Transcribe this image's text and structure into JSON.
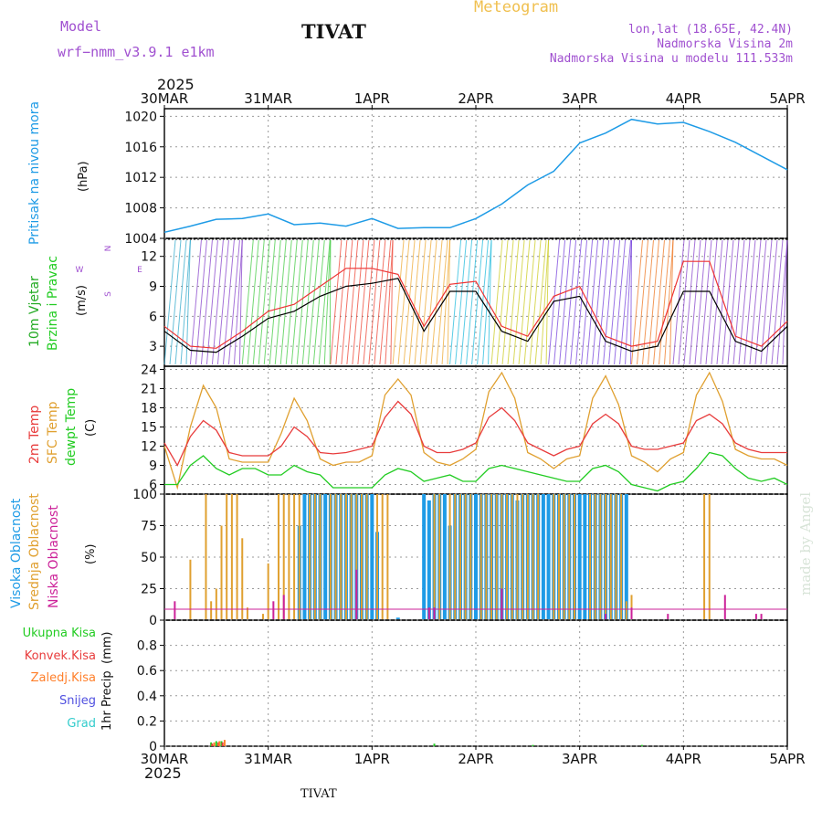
{
  "header": {
    "model_label": "Model",
    "model_name": "wrf−nmm_v3.9.1  e1km",
    "station": "TIVAT",
    "meteogram": "Meteogram",
    "lonlat": "lon,lat (18.65E, 42.4N)",
    "elevation": "Nadmorska Visina 2m",
    "model_elevation": "Nadmorska Visina u modelu 111.533m",
    "footer_station": "TIVAT",
    "credit": "made by Angel",
    "year_top": "2025",
    "year_bottom": "2025"
  },
  "colors": {
    "pressure": "#1e9be6",
    "wind_label_1": "#22aa22",
    "wind_label_2": "#22cc22",
    "temp2m": "#e83c3c",
    "sfc_temp": "#e0a030",
    "dewpoint": "#22cc22",
    "high_cloud": "#1e9be6",
    "mid_cloud": "#e0a030",
    "low_cloud": "#cc2299",
    "total_precip": "#22cc22",
    "conv_precip": "#e83c3c",
    "frozen_precip": "#ff7f2a",
    "snow": "#5050e0",
    "grad": "#33cccc",
    "title_purple": "#a050d0",
    "meteogram_orange": "#f0c050"
  },
  "chart_data": [
    {
      "type": "line",
      "panel": "pressure",
      "ylabel_left": "Pritisak na nivou mora",
      "ylabel_unit": "(hPa)",
      "ylim": [
        1004,
        1021
      ],
      "yticks": [
        "1004",
        "1008",
        "1012",
        "1016",
        "1020"
      ],
      "xticks": [
        "30MAR",
        "31MAR",
        "1APR",
        "2APR",
        "3APR",
        "4APR",
        "5APR"
      ],
      "x_days": [
        0,
        0.25,
        0.5,
        0.75,
        1.0,
        1.25,
        1.5,
        1.75,
        2.0,
        2.25,
        2.5,
        2.75,
        3.0,
        3.25,
        3.5,
        3.75,
        4.0,
        4.25,
        4.5,
        4.75,
        5.0,
        5.25,
        5.5,
        5.75,
        6.0
      ],
      "series": [
        {
          "name": "",
          "values": [
            1004.8,
            1005.6,
            1006.5,
            1006.6,
            1007.2,
            1005.8,
            1006.0,
            1005.6,
            1006.6,
            1005.3,
            1005.4,
            1005.4,
            1006.6,
            1008.5,
            1011.0,
            1012.8,
            1016.5,
            1017.8,
            1019.6,
            1019.0,
            1019.2,
            1018.0,
            1016.6,
            1014.8,
            1013.0
          ]
        }
      ]
    },
    {
      "type": "line",
      "panel": "wind",
      "ylabel_left_1": "10m Vjetar",
      "ylabel_left_2": "Brzina i Pravac",
      "ylabel_unit": "(m/s)",
      "compass": [
        "N",
        "E",
        "S",
        "W"
      ],
      "ylim": [
        1,
        13.8
      ],
      "yticks": [
        "3",
        "6",
        "9",
        "12"
      ],
      "x_days": [
        0,
        0.25,
        0.5,
        0.75,
        1.0,
        1.25,
        1.5,
        1.75,
        2.0,
        2.25,
        2.5,
        2.75,
        3.0,
        3.25,
        3.5,
        3.75,
        4.0,
        4.25,
        4.5,
        4.75,
        5.0,
        5.25,
        5.5,
        5.75,
        6.0
      ],
      "series": [
        {
          "name": "",
          "values": [
            4.5,
            2.6,
            2.4,
            4.0,
            5.8,
            6.5,
            8.0,
            9.0,
            9.3,
            9.8,
            4.5,
            8.5,
            8.5,
            4.5,
            3.5,
            7.5,
            8.0,
            3.5,
            2.5,
            3.0,
            8.5,
            8.5,
            3.5,
            2.5,
            5.0
          ]
        },
        {
          "name": "",
          "values": [
            5.0,
            3.0,
            2.8,
            4.5,
            6.5,
            7.2,
            9.0,
            10.8,
            10.8,
            10.2,
            5.0,
            9.2,
            9.5,
            5.0,
            4.0,
            8.0,
            9.0,
            4.0,
            3.0,
            3.5,
            11.5,
            11.5,
            4.0,
            3.0,
            5.5
          ]
        }
      ]
    },
    {
      "type": "line",
      "panel": "temperature",
      "ylabel_left_1": "2m Temp",
      "ylabel_left_2": "SFC Temp",
      "ylabel_left_3": "dewpt Temp",
      "ylabel_unit": "(C)",
      "ylim": [
        4.5,
        24.5
      ],
      "yticks": [
        "6",
        "9",
        "12",
        "15",
        "18",
        "21",
        "24"
      ],
      "x_days": [
        0,
        0.125,
        0.25,
        0.375,
        0.5,
        0.625,
        0.75,
        0.875,
        1.0,
        1.125,
        1.25,
        1.375,
        1.5,
        1.625,
        1.75,
        1.875,
        2.0,
        2.125,
        2.25,
        2.375,
        2.5,
        2.625,
        2.75,
        2.875,
        3.0,
        3.125,
        3.25,
        3.375,
        3.5,
        3.625,
        3.75,
        3.875,
        4.0,
        4.125,
        4.25,
        4.375,
        4.5,
        4.625,
        4.75,
        4.875,
        5.0,
        5.125,
        5.25,
        5.375,
        5.5,
        5.625,
        5.75,
        5.875,
        6.0
      ],
      "series": [
        {
          "name": "2m Temp",
          "values": [
            12.5,
            9.0,
            13.5,
            16.0,
            14.5,
            11.0,
            10.5,
            10.5,
            10.5,
            12.0,
            15.0,
            13.5,
            11.0,
            10.8,
            11.0,
            11.5,
            12.0,
            16.5,
            19.0,
            17.0,
            12.0,
            11.0,
            11.0,
            11.5,
            12.5,
            16.5,
            18.0,
            16.0,
            12.5,
            11.5,
            10.5,
            11.5,
            12.0,
            15.5,
            17.0,
            15.5,
            12.0,
            11.5,
            11.5,
            12.0,
            12.5,
            16.0,
            17.0,
            15.5,
            12.5,
            11.5,
            11.0,
            11.0,
            11.0
          ]
        },
        {
          "name": "SFC Temp",
          "values": [
            12.0,
            5.5,
            15.0,
            21.5,
            18.0,
            10.0,
            9.5,
            9.5,
            9.5,
            14.0,
            19.5,
            16.0,
            10.0,
            9.0,
            9.5,
            9.5,
            10.5,
            20.0,
            22.5,
            20.0,
            11.0,
            9.5,
            9.0,
            10.0,
            11.5,
            20.5,
            23.5,
            19.5,
            11.0,
            10.0,
            8.5,
            10.0,
            10.5,
            19.5,
            23.0,
            18.5,
            10.5,
            9.5,
            8.0,
            10.0,
            11.0,
            20.0,
            23.5,
            19.0,
            11.5,
            10.5,
            10.0,
            10.0,
            9.0
          ]
        },
        {
          "name": "dewpt Temp",
          "values": [
            6.0,
            6.0,
            9.0,
            10.5,
            8.5,
            7.5,
            8.5,
            8.5,
            7.5,
            7.5,
            9.0,
            8.0,
            7.5,
            5.5,
            5.5,
            5.5,
            5.5,
            7.5,
            8.5,
            8.0,
            6.5,
            7.0,
            7.5,
            6.5,
            6.5,
            8.5,
            9.0,
            8.5,
            8.0,
            7.5,
            7.0,
            6.5,
            6.5,
            8.5,
            9.0,
            8.0,
            6.0,
            5.5,
            5.0,
            6.0,
            6.5,
            8.5,
            11.0,
            10.5,
            8.5,
            7.0,
            6.5,
            7.0,
            6.0
          ]
        }
      ]
    },
    {
      "type": "bar",
      "panel": "clouds",
      "ylabel_left_1": "Visoka Oblacnost",
      "ylabel_left_2": "Srednja Oblacnost",
      "ylabel_left_3": "Niska Oblacnost",
      "ylabel_unit": "(%)",
      "ylim": [
        0,
        100
      ],
      "yticks": [
        "0",
        "25",
        "50",
        "75",
        "100"
      ],
      "series": [
        {
          "name": "Visoka Oblacnost",
          "x": [
            1.3,
            1.35,
            1.4,
            1.45,
            1.5,
            1.55,
            1.6,
            1.65,
            1.7,
            1.75,
            1.8,
            1.85,
            1.9,
            1.95,
            2.0,
            2.05,
            2.25,
            2.5,
            2.55,
            2.6,
            2.65,
            2.7,
            2.75,
            2.8,
            2.85,
            2.9,
            2.95,
            3.0,
            3.05,
            3.1,
            3.15,
            3.2,
            3.25,
            3.3,
            3.35,
            3.4,
            3.45,
            3.5,
            3.55,
            3.6,
            3.65,
            3.7,
            3.75,
            3.8,
            3.85,
            3.9,
            3.95,
            4.0,
            4.05,
            4.1,
            4.15,
            4.2,
            4.25,
            4.3,
            4.35,
            4.4,
            4.45
          ],
          "values": [
            75,
            100,
            100,
            100,
            100,
            100,
            100,
            100,
            100,
            100,
            100,
            100,
            100,
            100,
            100,
            70,
            2,
            100,
            95,
            100,
            100,
            100,
            75,
            100,
            100,
            100,
            100,
            100,
            100,
            100,
            100,
            100,
            100,
            100,
            100,
            95,
            100,
            100,
            100,
            100,
            100,
            100,
            100,
            100,
            100,
            100,
            100,
            100,
            100,
            100,
            100,
            100,
            100,
            100,
            100,
            100,
            100
          ]
        },
        {
          "name": "Srednja Oblacnost",
          "x": [
            0.25,
            0.4,
            0.45,
            0.5,
            0.55,
            0.6,
            0.65,
            0.7,
            0.75,
            0.8,
            0.95,
            1.0,
            1.1,
            1.15,
            1.2,
            1.25,
            1.3,
            1.4,
            1.45,
            1.5,
            1.6,
            1.65,
            1.7,
            1.75,
            1.8,
            1.85,
            1.9,
            1.95,
            2.05,
            2.1,
            2.15,
            2.6,
            2.65,
            2.75,
            2.8,
            2.85,
            2.9,
            2.95,
            3.05,
            3.1,
            3.15,
            3.2,
            3.25,
            3.3,
            3.35,
            3.4,
            3.45,
            3.5,
            3.55,
            3.6,
            3.75,
            3.8,
            3.85,
            3.9,
            3.95,
            4.1,
            4.15,
            4.2,
            4.25,
            4.3,
            4.35,
            4.4,
            4.45,
            4.5,
            5.2,
            5.25
          ],
          "values": [
            48,
            100,
            15,
            25,
            75,
            100,
            100,
            100,
            65,
            10,
            5,
            45,
            100,
            100,
            100,
            100,
            100,
            100,
            100,
            100,
            100,
            100,
            100,
            100,
            100,
            100,
            100,
            100,
            100,
            100,
            100,
            100,
            100,
            100,
            100,
            100,
            100,
            100,
            100,
            100,
            100,
            100,
            100,
            100,
            100,
            100,
            100,
            100,
            100,
            100,
            100,
            100,
            100,
            100,
            100,
            100,
            100,
            100,
            100,
            100,
            100,
            100,
            15,
            20,
            100,
            100
          ]
        },
        {
          "name": "Niska Oblacnost",
          "x": [
            0.1,
            1.05,
            1.15,
            1.85,
            2.55,
            2.6,
            3.25,
            4.25,
            4.5,
            4.85,
            5.4,
            5.7,
            5.75
          ],
          "values": [
            15,
            15,
            20,
            40,
            10,
            10,
            25,
            5,
            10,
            5,
            20,
            5,
            5
          ]
        }
      ]
    },
    {
      "type": "bar",
      "panel": "precipitation",
      "ylabel_left": "1hr Precip",
      "ylabel_unit": "(mm)",
      "legend": [
        "Ukupna Kisa",
        "Konvek.Kisa",
        "Zaledj.Kisa",
        "Snijeg",
        "Grad"
      ],
      "ylim": [
        0,
        1
      ],
      "yticks": [
        "0",
        "0.2",
        "0.4",
        "0.6",
        "0.8"
      ],
      "xticks": [
        "30MAR",
        "31MAR",
        "1APR",
        "2APR",
        "3APR",
        "4APR",
        "5APR"
      ],
      "series": [
        {
          "name": "Ukupna Kisa",
          "x": [
            0.45,
            0.5,
            0.55,
            2.6,
            3.55,
            4.6
          ],
          "values": [
            0.03,
            0.04,
            0.04,
            0.02,
            0.01,
            0.01
          ]
        },
        {
          "name": "Konvek.Kisa",
          "x": [
            0.46,
            0.52,
            0.56
          ],
          "values": [
            0.02,
            0.03,
            0.03
          ]
        },
        {
          "name": "Zaledj.Kisa",
          "x": [
            0.48,
            0.53,
            0.58
          ],
          "values": [
            0.03,
            0.04,
            0.05
          ]
        }
      ]
    }
  ]
}
